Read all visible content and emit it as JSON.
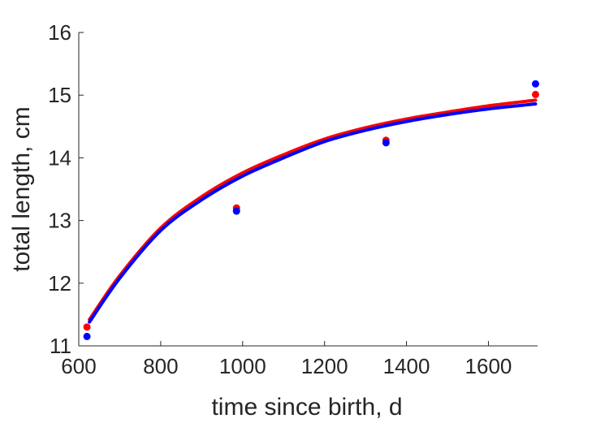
{
  "chart_data": {
    "type": "scatter",
    "title": "",
    "xlabel": "time since birth, d",
    "ylabel": "total length, cm",
    "xlim": [
      600,
      1720
    ],
    "ylim": [
      11,
      16
    ],
    "xticks": [
      600,
      800,
      1000,
      1200,
      1400,
      1600
    ],
    "yticks": [
      11,
      12,
      13,
      14,
      15,
      16
    ],
    "grid": false,
    "legend": "none",
    "points": [
      {
        "color": "#ff0000",
        "x": [
          620,
          985,
          1350,
          1715
        ],
        "y": [
          11.3,
          13.2,
          14.28,
          15.01
        ]
      },
      {
        "color": "#0000ff",
        "x": [
          620,
          985,
          1350,
          1715
        ],
        "y": [
          11.15,
          13.15,
          14.24,
          15.18
        ]
      }
    ],
    "curves": [
      {
        "color": "#ff0000",
        "x": [
          626,
          700,
          800,
          900,
          1000,
          1100,
          1200,
          1300,
          1400,
          1500,
          1600,
          1715
        ],
        "y": [
          11.42,
          12.12,
          12.88,
          13.38,
          13.76,
          14.05,
          14.3,
          14.48,
          14.62,
          14.73,
          14.83,
          14.92
        ]
      },
      {
        "color": "#0000ff",
        "x": [
          626,
          700,
          800,
          900,
          1000,
          1100,
          1200,
          1300,
          1400,
          1500,
          1600,
          1715
        ],
        "y": [
          11.38,
          12.08,
          12.84,
          13.33,
          13.71,
          14.0,
          14.26,
          14.44,
          14.58,
          14.69,
          14.78,
          14.86
        ]
      }
    ]
  }
}
